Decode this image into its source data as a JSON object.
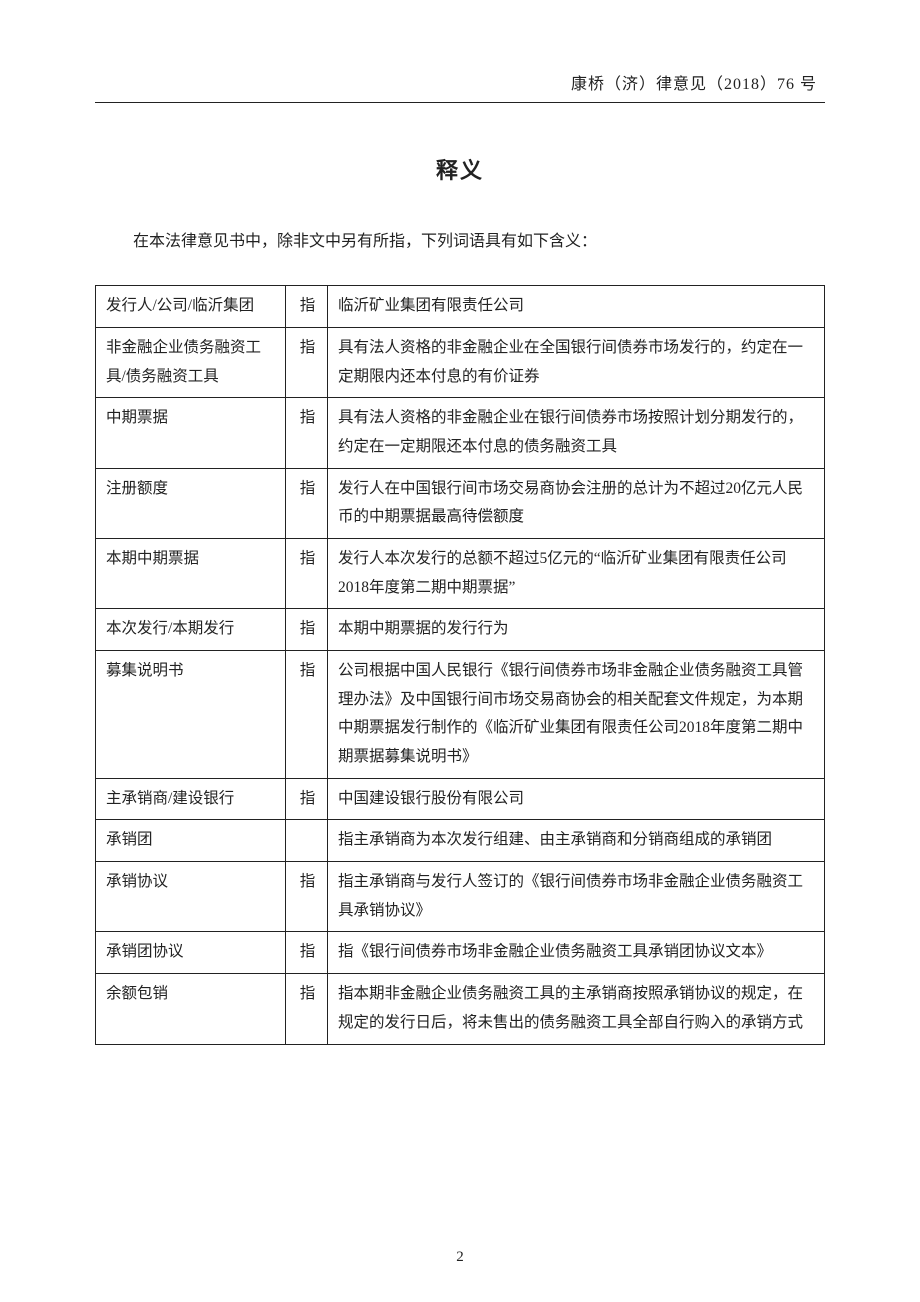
{
  "header": {
    "doc_ref": "康桥（济）律意见（2018）76 号"
  },
  "title": "释义",
  "intro": "在本法律意见书中，除非文中另有所指，下列词语具有如下含义：",
  "zhi": "指",
  "defs": [
    {
      "term": "发行人/公司/临沂集团",
      "zhi": "指",
      "meaning": "临沂矿业集团有限责任公司"
    },
    {
      "term": "非金融企业债务融资工具/债务融资工具",
      "zhi": "指",
      "meaning": "具有法人资格的非金融企业在全国银行间债券市场发行的，约定在一定期限内还本付息的有价证券"
    },
    {
      "term": "中期票据",
      "zhi": "指",
      "meaning": "具有法人资格的非金融企业在银行间债券市场按照计划分期发行的，约定在一定期限还本付息的债务融资工具"
    },
    {
      "term": "注册额度",
      "zhi": "指",
      "meaning": "发行人在中国银行间市场交易商协会注册的总计为不超过20亿元人民币的中期票据最高待偿额度"
    },
    {
      "term": "本期中期票据",
      "zhi": "指",
      "meaning": "发行人本次发行的总额不超过5亿元的“临沂矿业集团有限责任公司2018年度第二期中期票据”"
    },
    {
      "term": "本次发行/本期发行",
      "zhi": "指",
      "meaning": "本期中期票据的发行行为"
    },
    {
      "term": "募集说明书",
      "zhi": "指",
      "meaning": "公司根据中国人民银行《银行间债券市场非金融企业债务融资工具管理办法》及中国银行间市场交易商协会的相关配套文件规定，为本期中期票据发行制作的《临沂矿业集团有限责任公司2018年度第二期中期票据募集说明书》"
    },
    {
      "term": "主承销商/建设银行",
      "zhi": "指",
      "meaning": "中国建设银行股份有限公司"
    },
    {
      "term": "承销团",
      "zhi": "",
      "meaning": "指主承销商为本次发行组建、由主承销商和分销商组成的承销团"
    },
    {
      "term": "承销协议",
      "zhi": "指",
      "meaning": "指主承销商与发行人签订的《银行间债券市场非金融企业债务融资工具承销协议》"
    },
    {
      "term": "承销团协议",
      "zhi": "指",
      "meaning": "指《银行间债券市场非金融企业债务融资工具承销团协议文本》"
    },
    {
      "term": "余额包销",
      "zhi": "指",
      "meaning": "指本期非金融企业债务融资工具的主承销商按照承销协议的规定，在规定的发行日后，将未售出的债务融资工具全部自行购入的承销方式"
    }
  ],
  "page_number": "2"
}
